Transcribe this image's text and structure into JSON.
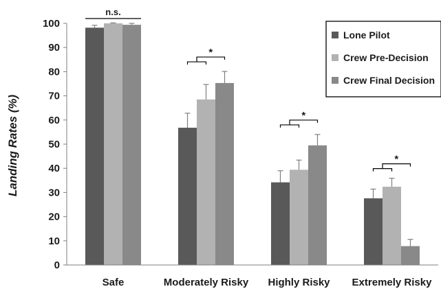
{
  "chart_data": {
    "type": "bar",
    "ylabel": "Landing Rates (%)",
    "ylim": [
      0,
      100
    ],
    "yticks": [
      0,
      10,
      20,
      30,
      40,
      50,
      60,
      70,
      80,
      90,
      100
    ],
    "categories": [
      "Safe",
      "Moderately Risky",
      "Highly Risky",
      "Extremely Risky"
    ],
    "series": [
      {
        "name": "Lone Pilot",
        "color": "#595959",
        "values": [
          98.2,
          56.8,
          34.2,
          27.6
        ],
        "errors": [
          1.0,
          6.0,
          4.8,
          3.8
        ]
      },
      {
        "name": "Crew Pre-Decision",
        "color": "#b2b2b2",
        "values": [
          100,
          68.5,
          39.4,
          32.4
        ],
        "errors": [
          0.2,
          6.2,
          4.0,
          3.5
        ]
      },
      {
        "name": "Crew Final Decision",
        "color": "#898989",
        "values": [
          99.4,
          75.3,
          49.5,
          7.8
        ],
        "errors": [
          0.6,
          4.8,
          4.5,
          2.8
        ]
      }
    ],
    "legend": "top-right",
    "significance": [
      {
        "category": "Safe",
        "label": "n.s."
      },
      {
        "category": "Moderately Risky",
        "label": "*"
      },
      {
        "category": "Highly Risky",
        "label": "*"
      },
      {
        "category": "Extremely Risky",
        "label": "*"
      }
    ]
  }
}
